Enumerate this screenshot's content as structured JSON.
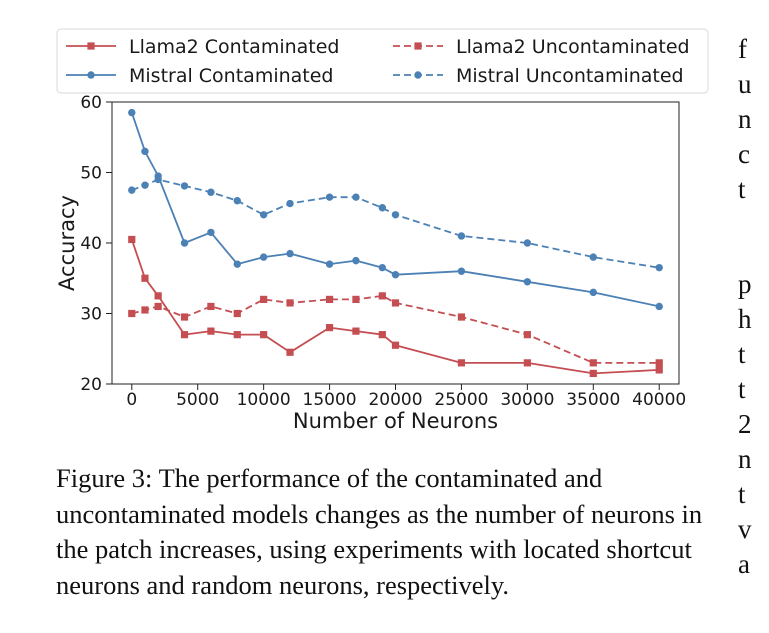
{
  "chart_data": {
    "type": "line",
    "xlabel": "Number of Neurons",
    "ylabel": "Accuracy",
    "xlim": [
      -1500,
      41500
    ],
    "ylim": [
      20,
      60
    ],
    "xticks": [
      0,
      5000,
      10000,
      15000,
      20000,
      25000,
      30000,
      35000,
      40000
    ],
    "yticks": [
      20,
      30,
      40,
      50,
      60
    ],
    "grid": false,
    "legend_position": "top",
    "series": [
      {
        "name": "Llama2 Contaminated",
        "color": "#c44e52",
        "style": "solid",
        "marker": "square",
        "x": [
          0,
          1000,
          2000,
          4000,
          6000,
          8000,
          10000,
          12000,
          15000,
          17000,
          19000,
          20000,
          25000,
          30000,
          35000,
          40000
        ],
        "y": [
          40.5,
          35,
          32.5,
          27,
          27.5,
          27,
          27,
          24.5,
          28,
          27.5,
          27,
          25.5,
          23,
          23,
          21.5,
          22
        ]
      },
      {
        "name": "Llama2 Uncontaminated",
        "color": "#c44e52",
        "style": "dashed",
        "marker": "square",
        "x": [
          0,
          1000,
          2000,
          4000,
          6000,
          8000,
          10000,
          12000,
          15000,
          17000,
          19000,
          20000,
          25000,
          30000,
          35000,
          40000
        ],
        "y": [
          30,
          30.5,
          31,
          29.5,
          31,
          30,
          32,
          31.5,
          32,
          32,
          32.5,
          31.5,
          29.5,
          27,
          23,
          23
        ]
      },
      {
        "name": "Mistral Contaminated",
        "color": "#4c81b5",
        "style": "solid",
        "marker": "circle",
        "x": [
          0,
          1000,
          2000,
          4000,
          6000,
          8000,
          10000,
          12000,
          15000,
          17000,
          19000,
          20000,
          25000,
          30000,
          35000,
          40000
        ],
        "y": [
          58.5,
          53,
          49.5,
          40,
          41.5,
          37,
          38,
          38.5,
          37,
          37.5,
          36.5,
          35.5,
          36,
          34.5,
          33,
          31
        ]
      },
      {
        "name": "Mistral Uncontaminated",
        "color": "#4c81b5",
        "style": "dashed",
        "marker": "circle",
        "x": [
          0,
          1000,
          2000,
          4000,
          6000,
          8000,
          10000,
          12000,
          15000,
          17000,
          19000,
          20000,
          25000,
          30000,
          35000,
          40000
        ],
        "y": [
          47.5,
          48.2,
          49,
          48.1,
          47.2,
          46,
          44,
          45.6,
          46.5,
          46.5,
          45,
          44,
          41,
          40,
          38,
          36.5
        ]
      }
    ]
  },
  "caption": "Figure 3: The performance of the contaminated and uncontaminated models changes as the number of neurons in the patch increases, using experiments with located shortcut neurons and random neurons, respectively.",
  "right_fragments": [
    "f",
    "u",
    "n",
    "c",
    "t",
    "",
    "p",
    "h",
    "t",
    "t",
    "2",
    "n",
    "t",
    "v",
    "a"
  ]
}
